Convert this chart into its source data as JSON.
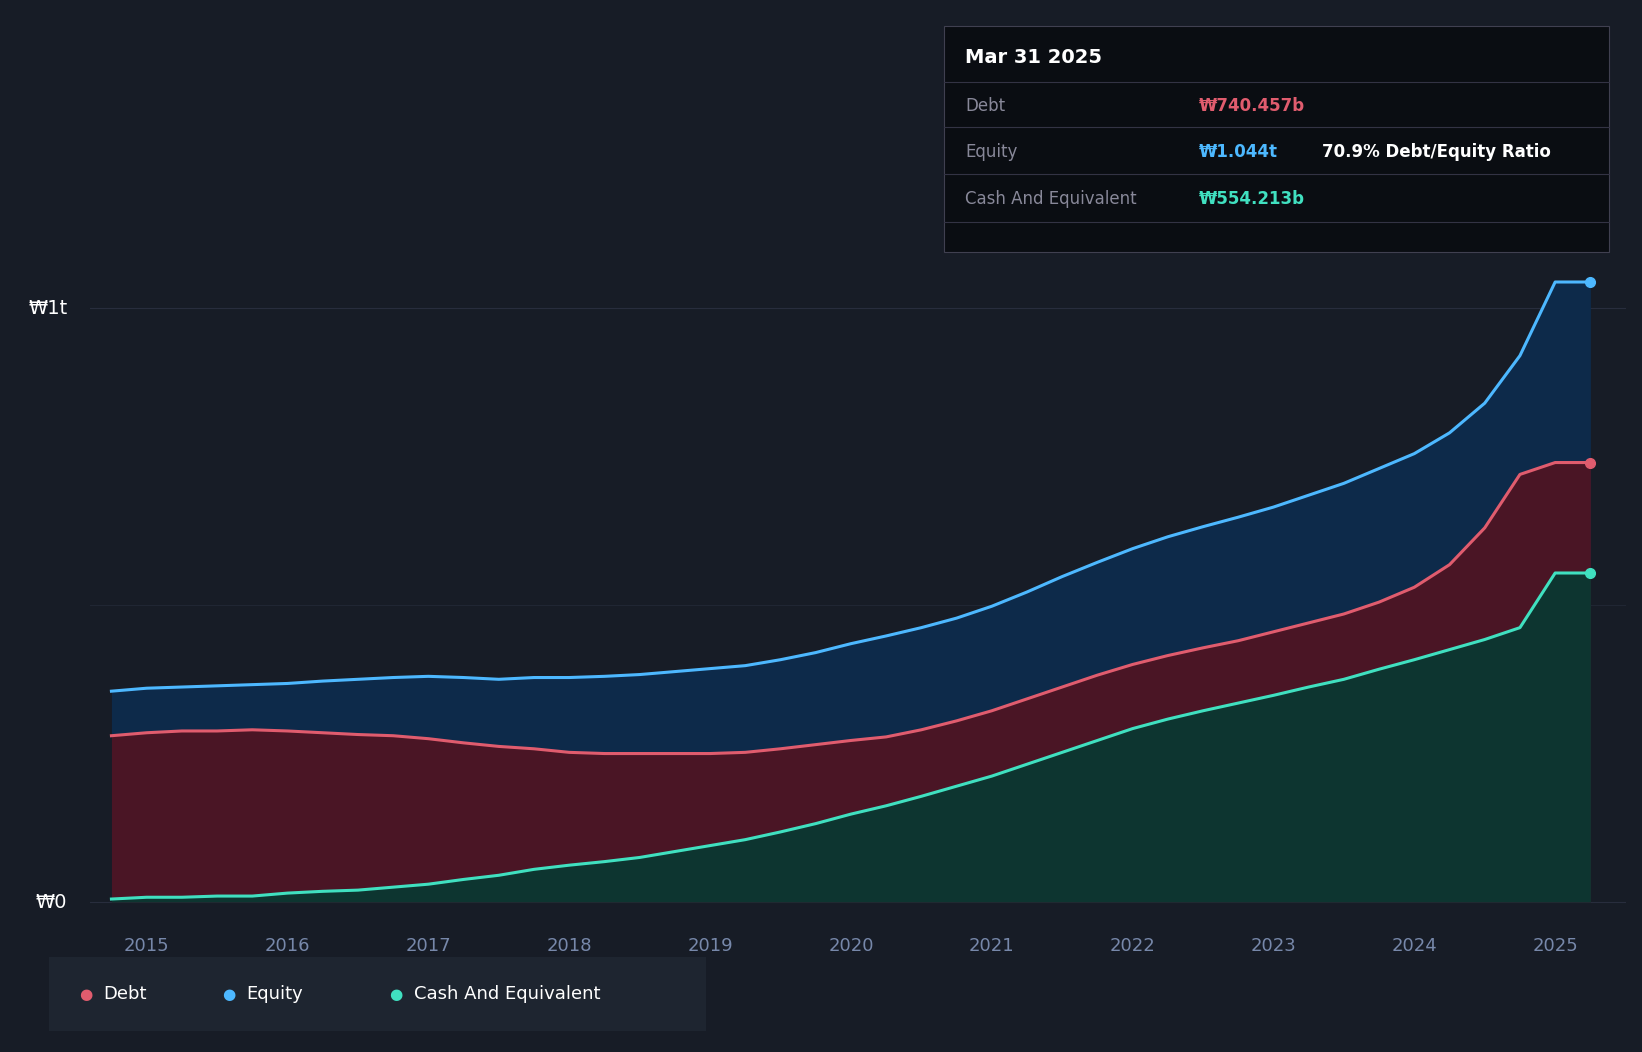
{
  "bg_color": "#171c26",
  "plot_bg_color": "#171c26",
  "tooltip_title": "Mar 31 2025",
  "tooltip_debt_label": "Debt",
  "tooltip_debt_value": "₩740.457b",
  "tooltip_equity_label": "Equity",
  "tooltip_equity_value": "₩1.044t",
  "tooltip_ratio": "70.9% Debt/Equity Ratio",
  "tooltip_cash_label": "Cash And Equivalent",
  "tooltip_cash_value": "₩554.213b",
  "debt_color": "#e05c6e",
  "equity_color": "#4db8ff",
  "cash_color": "#40e0c0",
  "debt_fill_color": "#4a1525",
  "equity_fill_color": "#0d2a4a",
  "cash_fill_color": "#0d3530",
  "ylabel_w1t": "₩1t",
  "ylabel_w0": "₩0",
  "grid_color": "#2a3040",
  "years": [
    2014.75,
    2015.0,
    2015.25,
    2015.5,
    2015.75,
    2016.0,
    2016.25,
    2016.5,
    2016.75,
    2017.0,
    2017.25,
    2017.5,
    2017.75,
    2018.0,
    2018.25,
    2018.5,
    2018.75,
    2019.0,
    2019.25,
    2019.5,
    2019.75,
    2020.0,
    2020.25,
    2020.5,
    2020.75,
    2021.0,
    2021.25,
    2021.5,
    2021.75,
    2022.0,
    2022.25,
    2022.5,
    2022.75,
    2023.0,
    2023.25,
    2023.5,
    2023.75,
    2024.0,
    2024.25,
    2024.5,
    2024.75,
    2025.0,
    2025.25
  ],
  "equity": [
    0.355,
    0.36,
    0.362,
    0.364,
    0.366,
    0.368,
    0.372,
    0.375,
    0.378,
    0.38,
    0.378,
    0.375,
    0.378,
    0.378,
    0.38,
    0.383,
    0.388,
    0.393,
    0.398,
    0.408,
    0.42,
    0.435,
    0.448,
    0.462,
    0.478,
    0.498,
    0.522,
    0.548,
    0.572,
    0.595,
    0.615,
    0.632,
    0.648,
    0.665,
    0.685,
    0.705,
    0.73,
    0.755,
    0.79,
    0.84,
    0.92,
    1.044,
    1.044
  ],
  "debt": [
    0.28,
    0.285,
    0.288,
    0.288,
    0.29,
    0.288,
    0.285,
    0.282,
    0.28,
    0.275,
    0.268,
    0.262,
    0.258,
    0.252,
    0.25,
    0.25,
    0.25,
    0.25,
    0.252,
    0.258,
    0.265,
    0.272,
    0.278,
    0.29,
    0.305,
    0.322,
    0.342,
    0.362,
    0.382,
    0.4,
    0.415,
    0.428,
    0.44,
    0.455,
    0.47,
    0.485,
    0.505,
    0.53,
    0.568,
    0.63,
    0.72,
    0.74,
    0.74
  ],
  "cash": [
    0.005,
    0.008,
    0.008,
    0.01,
    0.01,
    0.015,
    0.018,
    0.02,
    0.025,
    0.03,
    0.038,
    0.045,
    0.055,
    0.062,
    0.068,
    0.075,
    0.085,
    0.095,
    0.105,
    0.118,
    0.132,
    0.148,
    0.162,
    0.178,
    0.195,
    0.212,
    0.232,
    0.252,
    0.272,
    0.292,
    0.308,
    0.322,
    0.335,
    0.348,
    0.362,
    0.375,
    0.392,
    0.408,
    0.425,
    0.442,
    0.462,
    0.554,
    0.554
  ],
  "xlim_min": 2014.6,
  "xlim_max": 2025.5,
  "ylim_min": -0.04,
  "ylim_max": 1.2,
  "xtick_labels": [
    "2015",
    "2016",
    "2017",
    "2018",
    "2019",
    "2020",
    "2021",
    "2022",
    "2023",
    "2024",
    "2025"
  ],
  "xtick_positions": [
    2015,
    2016,
    2017,
    2018,
    2019,
    2020,
    2021,
    2022,
    2023,
    2024,
    2025
  ]
}
